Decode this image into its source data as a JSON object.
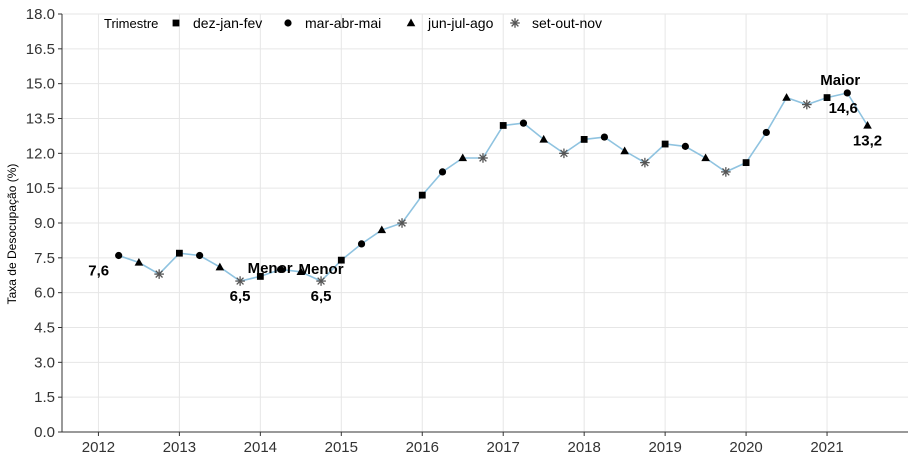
{
  "chart_data": {
    "type": "line",
    "ylabel": "Taxa de Desocupação (%)",
    "xlabel": "",
    "ylim": [
      0,
      18
    ],
    "yticks": [
      "0.0",
      "1.5",
      "3.0",
      "4.5",
      "6.0",
      "7.5",
      "9.0",
      "10.5",
      "12.0",
      "13.5",
      "15.0",
      "16.5",
      "18.0"
    ],
    "xlim": [
      2011.55,
      2022.0
    ],
    "xticks": [
      "2012",
      "2013",
      "2014",
      "2015",
      "2016",
      "2017",
      "2018",
      "2019",
      "2020",
      "2021"
    ],
    "grid": true,
    "legend": {
      "title": "Trimestre",
      "placement": "top-left",
      "entries": [
        {
          "label": "dez-jan-fev",
          "shape": "square"
        },
        {
          "label": "mar-abr-mai",
          "shape": "circle"
        },
        {
          "label": "jun-jul-ago",
          "shape": "triangle"
        },
        {
          "label": "set-out-nov",
          "shape": "asterisk"
        }
      ]
    },
    "line_color": "#8fc3e0",
    "marker_color": "#000000",
    "points": [
      {
        "x": 2012.25,
        "y": 7.6,
        "shape": "circle"
      },
      {
        "x": 2012.5,
        "y": 7.3,
        "shape": "triangle"
      },
      {
        "x": 2012.75,
        "y": 6.8,
        "shape": "asterisk"
      },
      {
        "x": 2013.0,
        "y": 7.7,
        "shape": "square"
      },
      {
        "x": 2013.25,
        "y": 7.6,
        "shape": "circle"
      },
      {
        "x": 2013.5,
        "y": 7.1,
        "shape": "triangle"
      },
      {
        "x": 2013.75,
        "y": 6.5,
        "shape": "asterisk"
      },
      {
        "x": 2014.0,
        "y": 6.7,
        "shape": "square"
      },
      {
        "x": 2014.25,
        "y": 7.0,
        "shape": "circle"
      },
      {
        "x": 2014.5,
        "y": 6.9,
        "shape": "triangle"
      },
      {
        "x": 2014.75,
        "y": 6.5,
        "shape": "asterisk"
      },
      {
        "x": 2015.0,
        "y": 7.4,
        "shape": "square"
      },
      {
        "x": 2015.25,
        "y": 8.1,
        "shape": "circle"
      },
      {
        "x": 2015.5,
        "y": 8.7,
        "shape": "triangle"
      },
      {
        "x": 2015.75,
        "y": 9.0,
        "shape": "asterisk"
      },
      {
        "x": 2016.0,
        "y": 10.2,
        "shape": "square"
      },
      {
        "x": 2016.25,
        "y": 11.2,
        "shape": "circle"
      },
      {
        "x": 2016.5,
        "y": 11.8,
        "shape": "triangle"
      },
      {
        "x": 2016.75,
        "y": 11.8,
        "shape": "asterisk"
      },
      {
        "x": 2017.0,
        "y": 13.2,
        "shape": "square"
      },
      {
        "x": 2017.25,
        "y": 13.3,
        "shape": "circle"
      },
      {
        "x": 2017.5,
        "y": 12.6,
        "shape": "triangle"
      },
      {
        "x": 2017.75,
        "y": 12.0,
        "shape": "asterisk"
      },
      {
        "x": 2018.0,
        "y": 12.6,
        "shape": "square"
      },
      {
        "x": 2018.25,
        "y": 12.7,
        "shape": "circle"
      },
      {
        "x": 2018.5,
        "y": 12.1,
        "shape": "triangle"
      },
      {
        "x": 2018.75,
        "y": 11.6,
        "shape": "asterisk"
      },
      {
        "x": 2019.0,
        "y": 12.4,
        "shape": "square"
      },
      {
        "x": 2019.25,
        "y": 12.3,
        "shape": "circle"
      },
      {
        "x": 2019.5,
        "y": 11.8,
        "shape": "triangle"
      },
      {
        "x": 2019.75,
        "y": 11.2,
        "shape": "asterisk"
      },
      {
        "x": 2020.0,
        "y": 11.6,
        "shape": "square"
      },
      {
        "x": 2020.25,
        "y": 12.9,
        "shape": "circle"
      },
      {
        "x": 2020.5,
        "y": 14.4,
        "shape": "triangle"
      },
      {
        "x": 2020.75,
        "y": 14.1,
        "shape": "asterisk"
      },
      {
        "x": 2021.0,
        "y": 14.4,
        "shape": "square"
      },
      {
        "x": 2021.25,
        "y": 14.6,
        "shape": "circle"
      },
      {
        "x": 2021.5,
        "y": 13.2,
        "shape": "triangle"
      }
    ],
    "annotations": [
      {
        "text": "7,6",
        "x": 2012.25,
        "y": 7.6,
        "pos": "below-left"
      },
      {
        "text": "Menor",
        "x": 2013.75,
        "y": 6.5,
        "pos": "above-right"
      },
      {
        "text": "6,5",
        "x": 2013.75,
        "y": 6.5,
        "pos": "below"
      },
      {
        "text": "Menor",
        "x": 2014.75,
        "y": 6.5,
        "pos": "above"
      },
      {
        "text": "6,5",
        "x": 2014.75,
        "y": 6.5,
        "pos": "below"
      },
      {
        "text": "Maior",
        "x": 2021.25,
        "y": 14.6,
        "pos": "above-left"
      },
      {
        "text": "14,6",
        "x": 2021.25,
        "y": 14.6,
        "pos": "below-left"
      },
      {
        "text": "13,2",
        "x": 2021.5,
        "y": 13.2,
        "pos": "below"
      }
    ]
  }
}
